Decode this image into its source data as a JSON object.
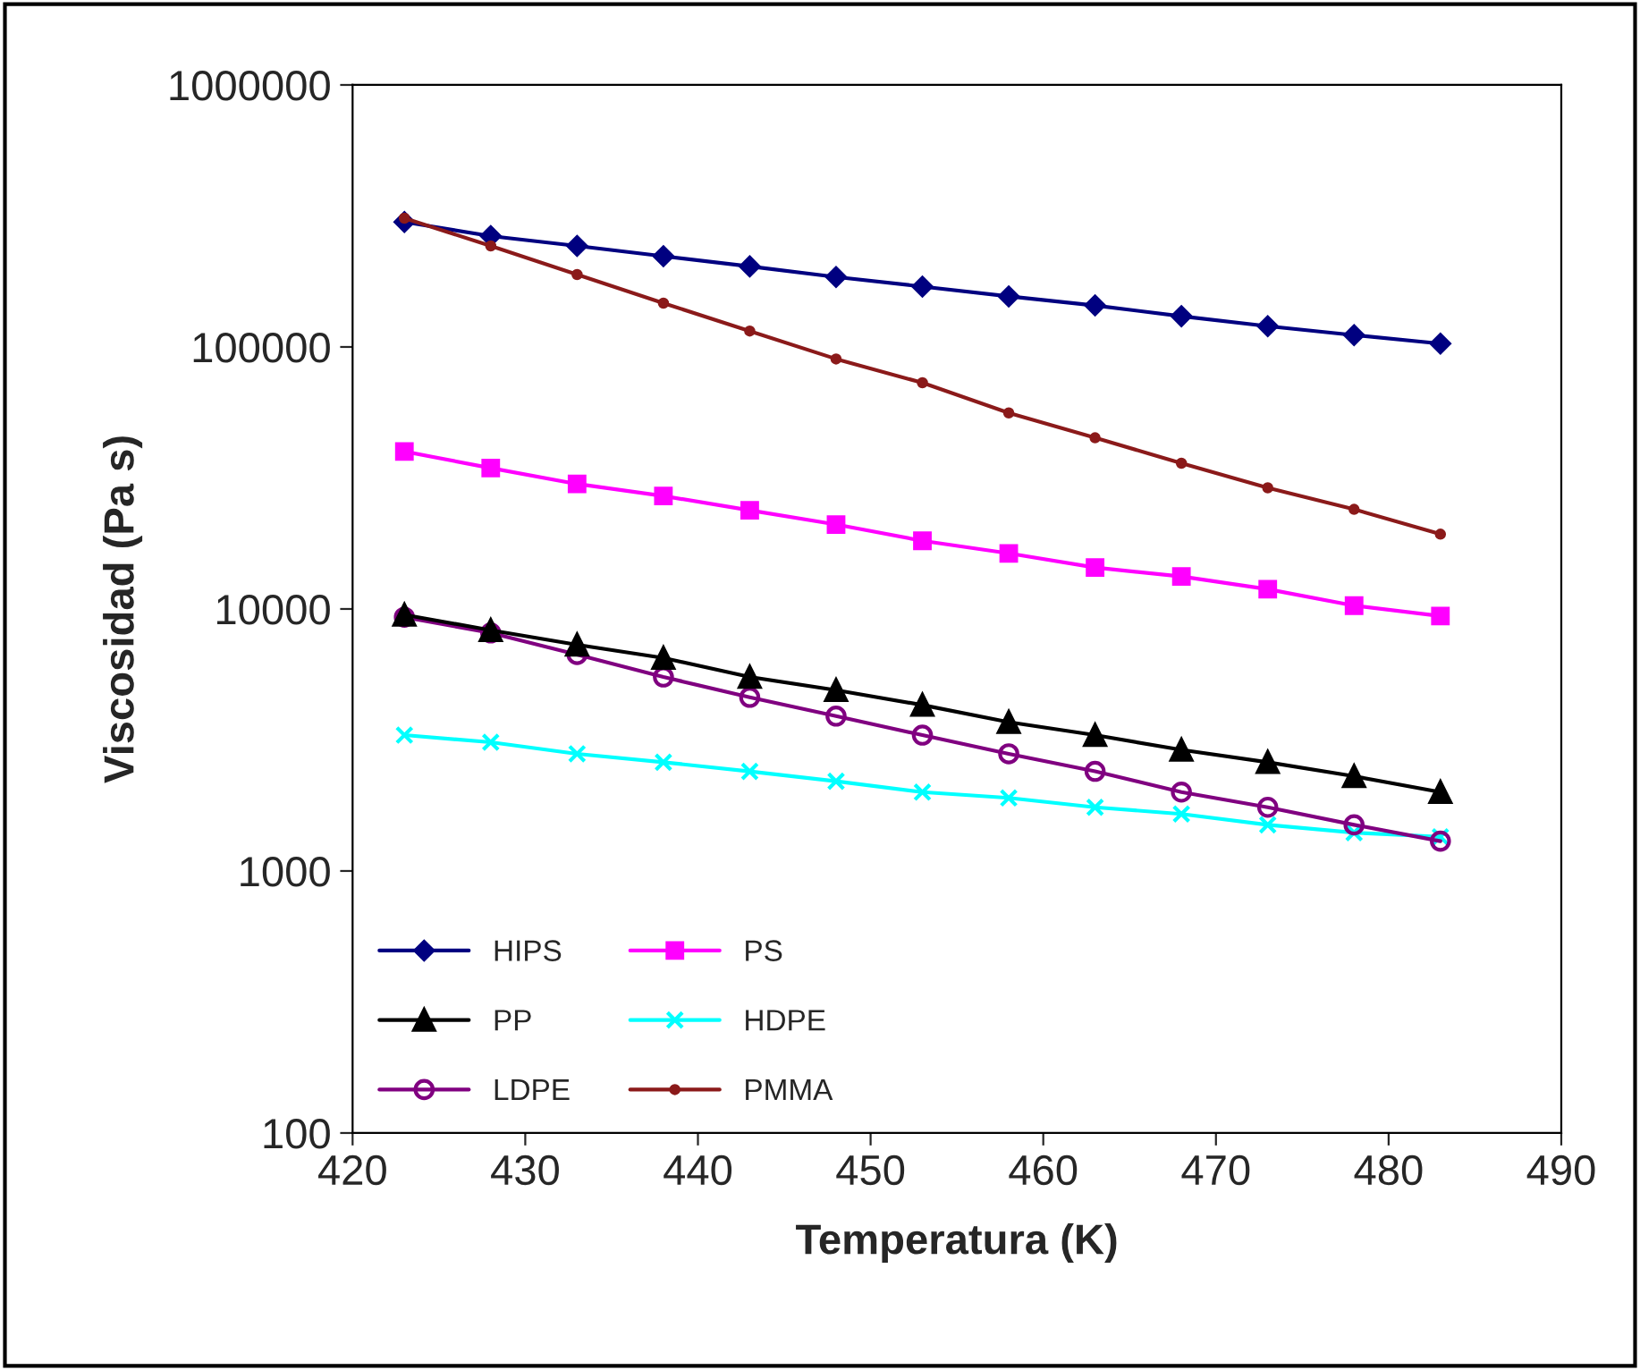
{
  "chart_data": {
    "type": "line",
    "xlabel": "Temperatura (K)",
    "ylabel": "Viscosidad (Pa s)",
    "log": true,
    "x": [
      423,
      428,
      433,
      438,
      443,
      448,
      453,
      458,
      463,
      468,
      473,
      478,
      483
    ],
    "xlim": [
      420,
      490
    ],
    "xticks": [
      420,
      430,
      440,
      450,
      460,
      470,
      480,
      490
    ],
    "ylim": [
      100,
      1000000
    ],
    "yticks": [
      100,
      1000,
      10000,
      100000,
      1000000
    ],
    "grid": false,
    "legend": "bottom left",
    "series": [
      {
        "name": "HIPS",
        "color": "#000080",
        "marker": "diamond",
        "values": [
          300000,
          265000,
          243000,
          222000,
          203000,
          185000,
          170000,
          156000,
          144000,
          131000,
          120000,
          111000,
          103000
        ]
      },
      {
        "name": "PS",
        "color": "#ff00ff",
        "marker": "square",
        "values": [
          39900,
          34500,
          30000,
          27000,
          23800,
          21000,
          18200,
          16300,
          14400,
          13300,
          11900,
          10300,
          9400
        ]
      },
      {
        "name": "PP",
        "color": "#000000",
        "marker": "triangle",
        "values": [
          9500,
          8300,
          7300,
          6500,
          5500,
          4900,
          4300,
          3700,
          3300,
          2900,
          2600,
          2300,
          2000
        ]
      },
      {
        "name": "HDPE",
        "color": "#00ffff",
        "marker": "cross",
        "values": [
          3300,
          3100,
          2800,
          2600,
          2400,
          2200,
          2000,
          1900,
          1750,
          1650,
          1500,
          1400,
          1350
        ]
      },
      {
        "name": "LDPE",
        "color": "#800080",
        "marker": "circle",
        "values": [
          9300,
          8100,
          6700,
          5500,
          4600,
          3900,
          3300,
          2800,
          2400,
          2000,
          1750,
          1500,
          1300
        ]
      },
      {
        "name": "PMMA",
        "color": "#8b1a1a",
        "marker": "circle",
        "values": [
          310000,
          243000,
          189000,
          147000,
          115000,
          90000,
          73000,
          56000,
          45000,
          36000,
          29000,
          24000,
          19300
        ]
      }
    ]
  }
}
